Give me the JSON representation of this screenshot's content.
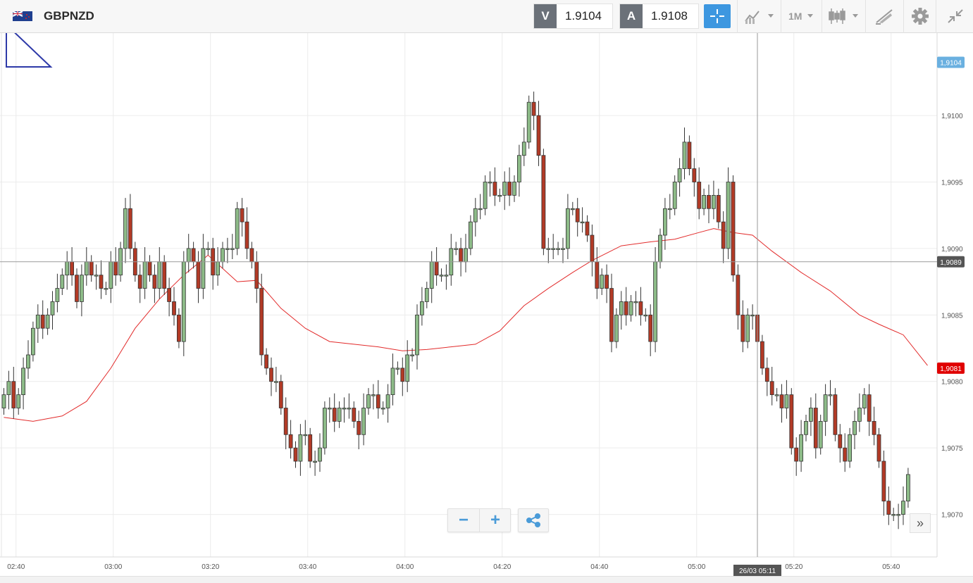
{
  "header": {
    "symbol": "GBPNZD",
    "sell_label": "V",
    "sell_price": "1.9104",
    "buy_label": "A",
    "buy_price": "1.9108",
    "timeframe": "1M",
    "icons": [
      "flag-gbpnzd-icon",
      "crosshair-icon",
      "indicators-icon",
      "candlestick-type-icon",
      "draw-tool-icon",
      "gear-icon",
      "collapse-icon"
    ]
  },
  "controls": {
    "zoom_out": "−",
    "zoom_in": "+",
    "expand": "»"
  },
  "colors": {
    "bull": "#8dbb88",
    "bear": "#b23a26",
    "ma_line": "#e22b2b",
    "last_price_tag": "#e00000",
    "current_tag": "#555555",
    "top_tag": "#6ab0e0",
    "accent": "#3d97e0"
  },
  "chart_data": {
    "type": "candlestick",
    "title": "",
    "xlabel": "",
    "ylabel": "",
    "ylim": [
      1.90668,
      1.91062
    ],
    "x_ticks": [
      {
        "t": 2.5,
        "label": "02:40"
      },
      {
        "t": 22.5,
        "label": "03:00"
      },
      {
        "t": 42.5,
        "label": "03:20"
      },
      {
        "t": 62.5,
        "label": "03:40"
      },
      {
        "t": 82.5,
        "label": "04:00"
      },
      {
        "t": 102.5,
        "label": "04:20"
      },
      {
        "t": 122.5,
        "label": "04:40"
      },
      {
        "t": 142.5,
        "label": "05:00"
      },
      {
        "t": 162.5,
        "label": "05:20"
      },
      {
        "t": 182.5,
        "label": "05:40"
      }
    ],
    "y_ticks": [
      "1,9070",
      "1,9075",
      "1,9080",
      "1,9085",
      "1,9090",
      "1,9095",
      "1,9100"
    ],
    "y_tick_values": [
      1.907,
      1.9075,
      1.908,
      1.9085,
      1.909,
      1.9095,
      1.91
    ],
    "price_tags": [
      {
        "value": 1.9104,
        "label": "1,9104",
        "kind": "top"
      },
      {
        "value": 1.9089,
        "label": "1,9089",
        "kind": "current"
      },
      {
        "value": 1.9081,
        "label": "1,9081",
        "kind": "last"
      }
    ],
    "crosshair": {
      "t": 155,
      "value": 1.9089,
      "time_label": "26/03 05:11"
    },
    "closes": [
      1.9079,
      1.908,
      1.9078,
      1.9079,
      1.9081,
      1.9082,
      1.9084,
      1.9085,
      1.9084,
      1.9085,
      1.9086,
      1.9087,
      1.9088,
      1.9089,
      1.9088,
      1.9086,
      1.9088,
      1.9089,
      1.9088,
      1.9088,
      1.9087,
      1.9087,
      1.9089,
      1.9088,
      1.909,
      1.9093,
      1.909,
      1.9088,
      1.9087,
      1.9089,
      1.9088,
      1.9087,
      1.9089,
      1.9087,
      1.9086,
      1.9085,
      1.9083,
      1.9089,
      1.909,
      1.9089,
      1.9087,
      1.909,
      1.909,
      1.9088,
      1.9089,
      1.909,
      1.909,
      1.909,
      1.9093,
      1.9092,
      1.909,
      1.9089,
      1.9087,
      1.9082,
      1.9081,
      1.908,
      1.908,
      1.9078,
      1.9076,
      1.9075,
      1.9074,
      1.9076,
      1.9076,
      1.9074,
      1.9074,
      1.9075,
      1.9078,
      1.9078,
      1.9077,
      1.9078,
      1.9078,
      1.9078,
      1.9077,
      1.9076,
      1.9078,
      1.9079,
      1.9079,
      1.9078,
      1.9078,
      1.9079,
      1.9081,
      1.9081,
      1.908,
      1.9082,
      1.9082,
      1.9085,
      1.9086,
      1.9087,
      1.9089,
      1.9088,
      1.9088,
      1.9088,
      1.909,
      1.909,
      1.9089,
      1.909,
      1.9092,
      1.9093,
      1.9093,
      1.9095,
      1.9095,
      1.9094,
      1.9094,
      1.9095,
      1.9094,
      1.9095,
      1.9097,
      1.9098,
      1.9101,
      1.91,
      1.9097,
      1.909,
      1.909,
      1.909,
      1.909,
      1.909,
      1.9093,
      1.9093,
      1.9092,
      1.9092,
      1.9091,
      1.9089,
      1.9087,
      1.9088,
      1.9087,
      1.9083,
      1.9085,
      1.9086,
      1.9085,
      1.9086,
      1.9086,
      1.9085,
      1.9085,
      1.9083,
      1.9089,
      1.9091,
      1.9093,
      1.9093,
      1.9095,
      1.9096,
      1.9098,
      1.9096,
      1.9095,
      1.9093,
      1.9094,
      1.9093,
      1.9094,
      1.9092,
      1.909,
      1.9095,
      1.9088,
      1.9085,
      1.9083,
      1.9085,
      1.9085,
      1.9083,
      1.9081,
      1.908,
      1.9079,
      1.9079,
      1.9078,
      1.9079,
      1.9075,
      1.9074,
      1.9076,
      1.9077,
      1.9078,
      1.9075,
      1.9077,
      1.9079,
      1.9079,
      1.9076,
      1.9075,
      1.9074,
      1.9076,
      1.9077,
      1.9078,
      1.9079,
      1.9077,
      1.9076,
      1.9074,
      1.9071,
      1.907,
      1.907,
      1.907,
      1.9071,
      1.9073
    ],
    "ma": [
      [
        0,
        1.90773
      ],
      [
        6,
        1.9077
      ],
      [
        12,
        1.90774
      ],
      [
        17,
        1.90785
      ],
      [
        22,
        1.9081
      ],
      [
        27,
        1.9084
      ],
      [
        32,
        1.90862
      ],
      [
        37,
        1.9088
      ],
      [
        42,
        1.90895
      ],
      [
        48,
        1.90875
      ],
      [
        52,
        1.90876
      ],
      [
        57,
        1.90855
      ],
      [
        62,
        1.9084
      ],
      [
        67,
        1.9083
      ],
      [
        72,
        1.90828
      ],
      [
        77,
        1.90826
      ],
      [
        82,
        1.90823
      ],
      [
        87,
        1.90824
      ],
      [
        92,
        1.90826
      ],
      [
        97,
        1.90828
      ],
      [
        102,
        1.90838
      ],
      [
        107,
        1.90857
      ],
      [
        112,
        1.9087
      ],
      [
        117,
        1.90882
      ],
      [
        121,
        1.90891
      ],
      [
        127,
        1.90902
      ],
      [
        133,
        1.90905
      ],
      [
        138,
        1.90907
      ],
      [
        143,
        1.90912
      ],
      [
        146,
        1.90915
      ],
      [
        150,
        1.90912
      ],
      [
        154,
        1.9091
      ],
      [
        158,
        1.90898
      ],
      [
        164,
        1.90882
      ],
      [
        170,
        1.90868
      ],
      [
        176,
        1.9085
      ],
      [
        180,
        1.90843
      ],
      [
        185,
        1.90835
      ],
      [
        190,
        1.90812
      ]
    ]
  }
}
